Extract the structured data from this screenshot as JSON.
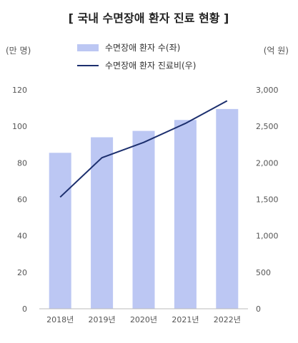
{
  "chart_data": {
    "type": "bar+line",
    "title": "[ 국내 수면장애 환자 진료 현황 ]",
    "categories": [
      "2018년",
      "2019년",
      "2020년",
      "2021년",
      "2022년"
    ],
    "left_axis": {
      "unit_label": "(만 명)",
      "ylim": [
        0,
        120
      ],
      "ticks": [
        "0",
        "20",
        "40",
        "60",
        "80",
        "100",
        "120"
      ]
    },
    "right_axis": {
      "unit_label": "(억 원)",
      "ylim": [
        0,
        3000
      ],
      "ticks": [
        "0",
        "500",
        "1,000",
        "1,500",
        "2,000",
        "2,500",
        "3,000"
      ]
    },
    "series": [
      {
        "name": "수면장애 환자 수(좌)",
        "type": "bar",
        "axis": "left",
        "color": "#bcc7f3",
        "values": [
          85.5,
          94.0,
          97.5,
          103.5,
          109.5
        ]
      },
      {
        "name": "수면장애 환자 진료비(우)",
        "type": "line",
        "axis": "right",
        "color": "#1c2f6e",
        "values": [
          1530,
          2070,
          2280,
          2540,
          2850
        ]
      }
    ],
    "grid": false,
    "legend_position": "top-center"
  }
}
